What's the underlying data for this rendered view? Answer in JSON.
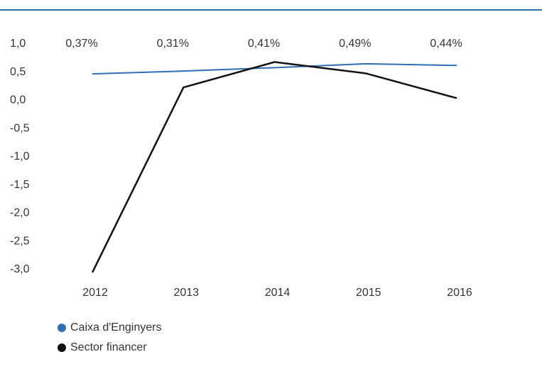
{
  "chart_data": {
    "type": "line",
    "categories": [
      "2012",
      "2013",
      "2014",
      "2015",
      "2016"
    ],
    "annotations": [
      "0,37%",
      "0,31%",
      "0,41%",
      "0,49%",
      "0,44%"
    ],
    "series": [
      {
        "name": "Caixa d'Enginyers",
        "color": "#2f6db5",
        "values": [
          0.47,
          0.52,
          0.58,
          0.65,
          0.62
        ]
      },
      {
        "name": "Sector financer",
        "color": "#111111",
        "values": [
          -3.05,
          0.23,
          0.68,
          0.48,
          0.04
        ]
      }
    ],
    "ylim": [
      -3.0,
      1.0
    ],
    "yticks": [
      {
        "value": 1.0,
        "label": "1,0"
      },
      {
        "value": 0.5,
        "label": "0,5"
      },
      {
        "value": 0.0,
        "label": "0,0"
      },
      {
        "value": -0.5,
        "label": "-0,5"
      },
      {
        "value": -1.0,
        "label": "-1,0"
      },
      {
        "value": -1.5,
        "label": "-1,5"
      },
      {
        "value": -2.0,
        "label": "-2,0"
      },
      {
        "value": -2.5,
        "label": "-2,5"
      },
      {
        "value": -3.0,
        "label": "-3,0"
      }
    ],
    "grid": false
  }
}
